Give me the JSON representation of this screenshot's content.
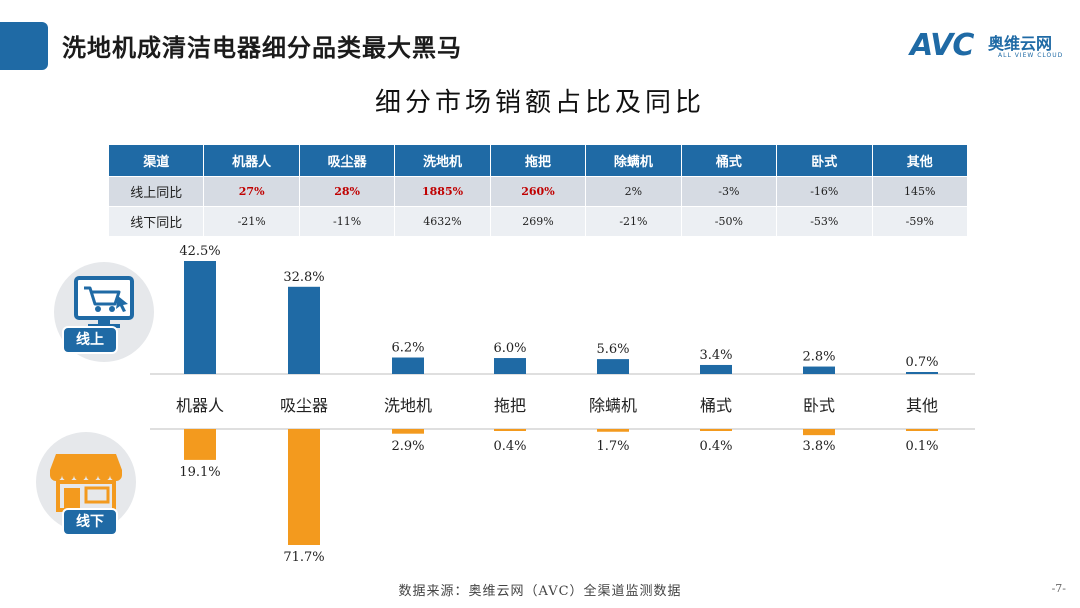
{
  "header": {
    "title": "洗地机成清洁电器细分品类最大黑马"
  },
  "logo": {
    "mark": "AVC",
    "cn": "奥维云网",
    "en": "ALL VIEW CLOUD"
  },
  "colors": {
    "online": "#1f6aa5",
    "offline": "#f39a1e",
    "highlight": "#c00000"
  },
  "table": {
    "channel_header": "渠道",
    "columns": [
      "机器人",
      "吸尘器",
      "洗地机",
      "拖把",
      "除螨机",
      "桶式",
      "卧式",
      "其他"
    ],
    "rows": [
      {
        "label": "线上同比",
        "values": [
          "27%",
          "28%",
          "1885%",
          "260%",
          "2%",
          "-3%",
          "-16%",
          "145%"
        ],
        "highlighted": [
          true,
          true,
          true,
          true,
          false,
          false,
          false,
          false
        ]
      },
      {
        "label": "线下同比",
        "values": [
          "-21%",
          "-11%",
          "4632%",
          "269%",
          "-21%",
          "-50%",
          "-53%",
          "-59%"
        ],
        "highlighted": [
          false,
          false,
          false,
          false,
          false,
          false,
          false,
          false
        ]
      }
    ]
  },
  "badges": {
    "online": "线上",
    "offline": "线下"
  },
  "icons": {
    "online": "shopping-cart-monitor-icon",
    "offline": "storefront-icon"
  },
  "chart_data": {
    "type": "bar",
    "title": "细分市场销额占比及同比",
    "categories": [
      "机器人",
      "吸尘器",
      "洗地机",
      "拖把",
      "除螨机",
      "桶式",
      "卧式",
      "其他"
    ],
    "series": [
      {
        "name": "线上",
        "values": [
          42.5,
          32.8,
          6.2,
          6.0,
          5.6,
          3.4,
          2.8,
          0.7
        ]
      },
      {
        "name": "线下",
        "values": [
          19.1,
          71.7,
          2.9,
          0.4,
          1.7,
          0.4,
          3.8,
          0.1
        ]
      }
    ],
    "value_suffix": "%",
    "layout": "mirrored: online bars above category axis, offline bars below",
    "ylim_online": [
      0,
      45
    ],
    "ylim_offline": [
      0,
      75
    ],
    "grid": false,
    "legend": "none"
  },
  "footer": {
    "source": "数据来源：奥维云网（AVC）全渠道监测数据",
    "page": "-7-"
  }
}
